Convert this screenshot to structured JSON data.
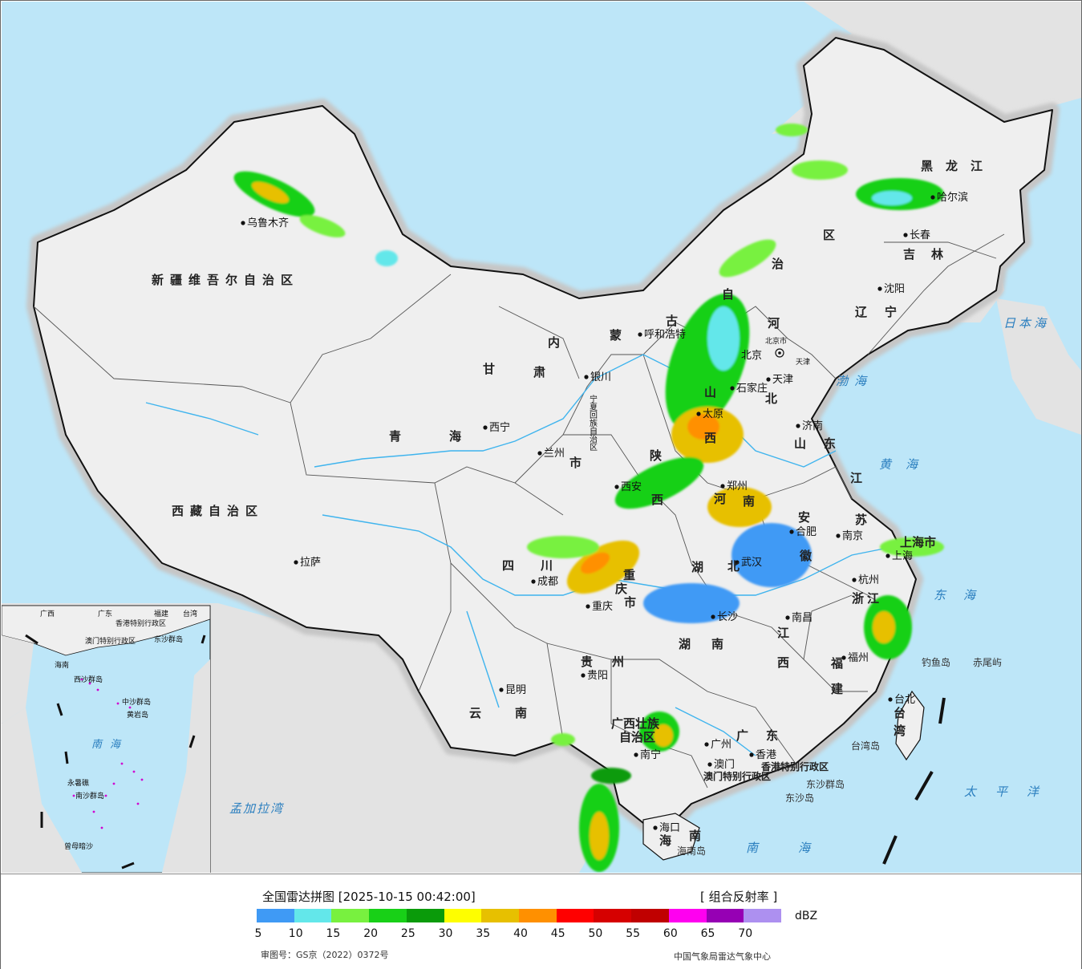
{
  "legend": {
    "title": "全国雷达拼图 [2025-10-15 00:42:00]",
    "product": "[ 组合反射率 ]",
    "unit": "dBZ",
    "approval": "审图号：GS京（2022）0372号",
    "agency": "中国气象局雷达气象中心",
    "colors": [
      "#3f9af5",
      "#63e7ea",
      "#78f13f",
      "#18d017",
      "#0a9b0a",
      "#fefe00",
      "#e7c000",
      "#ff9000",
      "#ff0000",
      "#d60000",
      "#c00000",
      "#ff00f0",
      "#9600b4",
      "#ad90f0"
    ],
    "ticks": [
      "5",
      "10",
      "15",
      "20",
      "25",
      "30",
      "35",
      "40",
      "45",
      "50",
      "55",
      "60",
      "65",
      "70"
    ]
  },
  "colors": {
    "land": "#efefef",
    "sea": "#bde6f8",
    "foreign": "#e3e3e3",
    "border": "#111111",
    "halo": "#c9c9c9",
    "river": "#3fb4ee"
  },
  "provinces": [
    {
      "id": "xinjiang",
      "text": "新疆维吾尔自治区"
    },
    {
      "id": "xizang",
      "text": "西藏自治区"
    },
    {
      "id": "qinghai1",
      "text": "青"
    },
    {
      "id": "qinghai2",
      "text": "海"
    },
    {
      "id": "gansu1",
      "text": "甘"
    },
    {
      "id": "gansu2",
      "text": "肃"
    },
    {
      "id": "neimenggu1",
      "text": "内"
    },
    {
      "id": "neimenggu2",
      "text": "蒙"
    },
    {
      "id": "neimenggu3",
      "text": "古"
    },
    {
      "id": "neimenggu4",
      "text": "自"
    },
    {
      "id": "neimenggu5",
      "text": "治"
    },
    {
      "id": "neimenggu6",
      "text": "区"
    },
    {
      "id": "heilongjiang",
      "text": "黑龙江"
    },
    {
      "id": "jilin",
      "text": "吉林"
    },
    {
      "id": "liaoning",
      "text": "辽宁"
    },
    {
      "id": "hebei1",
      "text": "河"
    },
    {
      "id": "hebei2",
      "text": "北"
    },
    {
      "id": "shanxi1",
      "text": "山"
    },
    {
      "id": "shanxi2",
      "text": "西"
    },
    {
      "id": "shandong",
      "text": "山东"
    },
    {
      "id": "henan1",
      "text": "河"
    },
    {
      "id": "henan2",
      "text": "南"
    },
    {
      "id": "shaanxi1",
      "text": "陕"
    },
    {
      "id": "shaanxi2",
      "text": "西"
    },
    {
      "id": "jiangsu1",
      "text": "江"
    },
    {
      "id": "jiangsu2",
      "text": "苏"
    },
    {
      "id": "anhui1",
      "text": "安"
    },
    {
      "id": "anhui2",
      "text": "徽"
    },
    {
      "id": "shanghai",
      "text": "上海市"
    },
    {
      "id": "hubei1",
      "text": "湖"
    },
    {
      "id": "hubei2",
      "text": "北"
    },
    {
      "id": "zhejiang",
      "text": "浙江"
    },
    {
      "id": "sichuan1",
      "text": "四"
    },
    {
      "id": "sichuan2",
      "text": "川"
    },
    {
      "id": "chongqing1",
      "text": "重"
    },
    {
      "id": "chongqing2",
      "text": "庆"
    },
    {
      "id": "chongqing3",
      "text": "市"
    },
    {
      "id": "hunan1",
      "text": "湖"
    },
    {
      "id": "hunan2",
      "text": "南"
    },
    {
      "id": "jiangxi1",
      "text": "江"
    },
    {
      "id": "jiangxi2",
      "text": "西"
    },
    {
      "id": "fujian1",
      "text": "福"
    },
    {
      "id": "fujian2",
      "text": "建"
    },
    {
      "id": "guizhou",
      "text": "贵州"
    },
    {
      "id": "yunnan1",
      "text": "云"
    },
    {
      "id": "yunnan2",
      "text": "南"
    },
    {
      "id": "guangxi1",
      "text": "广西壮族"
    },
    {
      "id": "guangxi2",
      "text": "自治区"
    },
    {
      "id": "guangdong",
      "text": "广东"
    },
    {
      "id": "taiwan1",
      "text": "台"
    },
    {
      "id": "taiwan2",
      "text": "湾"
    },
    {
      "id": "hainan1",
      "text": "海"
    },
    {
      "id": "hainan2",
      "text": "南"
    },
    {
      "id": "gansu3",
      "text": "市"
    },
    {
      "id": "ningxia",
      "text": "宁夏回族自治区"
    },
    {
      "id": "beijing",
      "text": "北京市"
    },
    {
      "id": "tianjin",
      "text": "天津"
    },
    {
      "id": "hk",
      "text": "香港特别行政区"
    },
    {
      "id": "macau",
      "text": "澳门特别行政区"
    }
  ],
  "cities": [
    {
      "id": "urumqi",
      "text": "乌鲁木齐"
    },
    {
      "id": "lhasa",
      "text": "拉萨"
    },
    {
      "id": "xining",
      "text": "西宁"
    },
    {
      "id": "lanzhou",
      "text": "兰州"
    },
    {
      "id": "yinchuan",
      "text": "银川"
    },
    {
      "id": "hohhot",
      "text": "呼和浩特"
    },
    {
      "id": "harbin",
      "text": "哈尔滨"
    },
    {
      "id": "changchun",
      "text": "长春"
    },
    {
      "id": "shenyang",
      "text": "沈阳"
    },
    {
      "id": "beijing",
      "text": "北京"
    },
    {
      "id": "tianjin",
      "text": "天津"
    },
    {
      "id": "shijiazhuang",
      "text": "石家庄"
    },
    {
      "id": "taiyuan",
      "text": "太原"
    },
    {
      "id": "jinan",
      "text": "济南"
    },
    {
      "id": "zhengzhou",
      "text": "郑州"
    },
    {
      "id": "xian",
      "text": "西安"
    },
    {
      "id": "hefei",
      "text": "合肥"
    },
    {
      "id": "nanjing",
      "text": "南京"
    },
    {
      "id": "shanghai",
      "text": "上海"
    },
    {
      "id": "hangzhou",
      "text": "杭州"
    },
    {
      "id": "wuhan",
      "text": "武汉"
    },
    {
      "id": "chengdu",
      "text": "成都"
    },
    {
      "id": "chongqing",
      "text": "重庆"
    },
    {
      "id": "changsha",
      "text": "长沙"
    },
    {
      "id": "nanchang",
      "text": "南昌"
    },
    {
      "id": "fuzhou",
      "text": "福州"
    },
    {
      "id": "guiyang",
      "text": "贵阳"
    },
    {
      "id": "kunming",
      "text": "昆明"
    },
    {
      "id": "nanning",
      "text": "南宁"
    },
    {
      "id": "guangzhou",
      "text": "广州"
    },
    {
      "id": "hongkong",
      "text": "香港"
    },
    {
      "id": "macao",
      "text": "澳门"
    },
    {
      "id": "taipei",
      "text": "台北"
    },
    {
      "id": "haikou",
      "text": "海口"
    }
  ],
  "seas": [
    {
      "id": "japansea",
      "text": "日本海"
    },
    {
      "id": "bohai",
      "text": "渤海"
    },
    {
      "id": "yellowsea",
      "text": "黄海"
    },
    {
      "id": "eastsea",
      "text": "东海"
    },
    {
      "id": "pacific",
      "text": "太平洋"
    },
    {
      "id": "southsea",
      "text": "南海"
    },
    {
      "id": "bengal",
      "text": "孟加拉湾"
    }
  ],
  "islands": [
    {
      "id": "diaoyu",
      "text": "钓鱼岛"
    },
    {
      "id": "chiwei",
      "text": "赤尾屿"
    },
    {
      "id": "dongsha1",
      "text": "东沙群岛"
    },
    {
      "id": "dongsha2",
      "text": "东沙岛"
    },
    {
      "id": "taiwanisl",
      "text": "台湾岛"
    },
    {
      "id": "hainanisl",
      "text": "海南岛"
    }
  ],
  "inset": {
    "labels": [
      {
        "id": "i_guangxi",
        "text": "广西"
      },
      {
        "id": "i_guangdong",
        "text": "广东"
      },
      {
        "id": "i_fujian",
        "text": "福建"
      },
      {
        "id": "i_taiwan",
        "text": "台湾"
      },
      {
        "id": "i_hk",
        "text": "香港特别行政区"
      },
      {
        "id": "i_macau",
        "text": "澳门特别行政区"
      },
      {
        "id": "i_dongsha",
        "text": "东沙群岛"
      },
      {
        "id": "i_hainan",
        "text": "海南"
      },
      {
        "id": "i_xisha",
        "text": "西沙群岛"
      },
      {
        "id": "i_zhongsha",
        "text": "中沙群岛"
      },
      {
        "id": "i_huangyan",
        "text": "黄岩岛"
      },
      {
        "id": "i_nanhai",
        "text": "南海"
      },
      {
        "id": "i_nansha",
        "text": "南沙群岛"
      },
      {
        "id": "i_yongshu",
        "text": "永暑礁"
      },
      {
        "id": "i_zengmu",
        "text": "曾母暗沙"
      }
    ]
  }
}
